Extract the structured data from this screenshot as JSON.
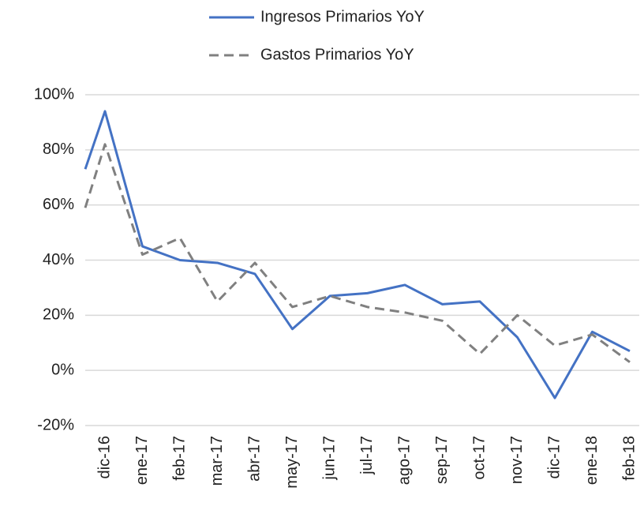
{
  "chart_data": {
    "type": "line",
    "categories": [
      null,
      "dic-16",
      "ene-17",
      "feb-17",
      "mar-17",
      "abr-17",
      "may-17",
      "jun-17",
      "jul-17",
      "ago-17",
      "sep-17",
      "oct-17",
      "nov-17",
      "dic-17",
      "ene-18",
      "feb-18"
    ],
    "series": [
      {
        "name": "Ingresos Primarios YoY",
        "color": "#4472c4",
        "dashed": false,
        "values": [
          73,
          94,
          45,
          40,
          39,
          35,
          15,
          27,
          28,
          31,
          24,
          25,
          12,
          -10,
          14,
          7
        ]
      },
      {
        "name": "Gastos Primarios YoY",
        "color": "#808080",
        "dashed": true,
        "values": [
          59,
          82,
          42,
          48,
          25,
          39,
          23,
          27,
          23,
          21,
          18,
          6,
          20,
          9,
          13,
          3
        ]
      }
    ],
    "ylim": [
      -20,
      100
    ],
    "yticks": [
      {
        "value": -20,
        "label": "-20%"
      },
      {
        "value": 0,
        "label": "0%"
      },
      {
        "value": 20,
        "label": "20%"
      },
      {
        "value": 40,
        "label": "40%"
      },
      {
        "value": 60,
        "label": "60%"
      },
      {
        "value": 80,
        "label": "80%"
      },
      {
        "value": 100,
        "label": "100%"
      }
    ],
    "grid": true,
    "legend": "top"
  }
}
